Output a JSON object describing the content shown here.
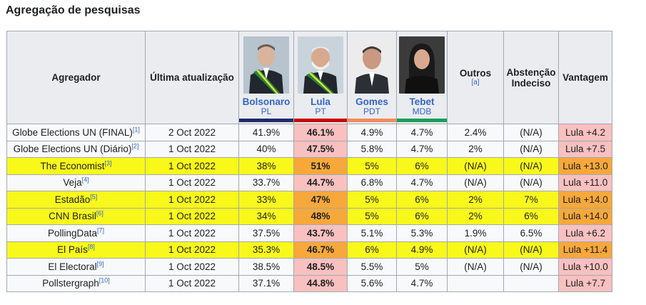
{
  "heading": "Agregação de pesquisas",
  "headers": {
    "agregador": "Agregador",
    "ultima": "Última atualização",
    "outros": "Outros",
    "outros_note": "[a]",
    "abstencao": "Abstenção Indeciso",
    "vantagem": "Vantagem"
  },
  "candidates": [
    {
      "name": "Bolsonaro",
      "party": "PL",
      "bar_color": "#1f2a6b"
    },
    {
      "name": "Lula",
      "party": "PT",
      "bar_color": "#cc0000"
    },
    {
      "name": "Gomes",
      "party": "PDT",
      "bar_color": "#f28b5b"
    },
    {
      "name": "Tebet",
      "party": "MDB",
      "bar_color": "#1a9e5a"
    }
  ],
  "rows": [
    {
      "agg": "Globe Elections UN (FINAL)",
      "ref": "[1]",
      "date": "2 Oct 2022",
      "bolsonaro": "41.9%",
      "lula": "46.1%",
      "gomes": "4.9%",
      "tebet": "4.7%",
      "outros": "2.4%",
      "abst": "(N/A)",
      "vant": "Lula +4.2",
      "highlighted": false
    },
    {
      "agg": "Globe Elections UN (Diário)",
      "ref": "[2]",
      "date": "1 Oct 2022",
      "bolsonaro": "40%",
      "lula": "47.5%",
      "gomes": "5.8%",
      "tebet": "4.7%",
      "outros": "2%",
      "abst": "(N/A)",
      "vant": "Lula +7.5",
      "highlighted": false
    },
    {
      "agg": "The Economist",
      "ref": "[3]",
      "date": "1 Oct 2022",
      "bolsonaro": "38%",
      "lula": "51%",
      "gomes": "5%",
      "tebet": "6%",
      "outros": "(N/A)",
      "abst": "(N/A)",
      "vant": "Lula +13.0",
      "highlighted": true
    },
    {
      "agg": "Veja",
      "ref": "[4]",
      "date": "1 Oct 2022",
      "bolsonaro": "33.7%",
      "lula": "44.7%",
      "gomes": "6.8%",
      "tebet": "4.7%",
      "outros": "(N/A)",
      "abst": "(N/A)",
      "vant": "Lula +11.0",
      "highlighted": false
    },
    {
      "agg": "Estadão",
      "ref": "[5]",
      "date": "1 Oct 2022",
      "bolsonaro": "33%",
      "lula": "47%",
      "gomes": "5%",
      "tebet": "6%",
      "outros": "2%",
      "abst": "7%",
      "vant": "Lula +14.0",
      "highlighted": true
    },
    {
      "agg": "CNN Brasil",
      "ref": "[6]",
      "date": "1 Oct 2022",
      "bolsonaro": "34%",
      "lula": "48%",
      "gomes": "5%",
      "tebet": "6%",
      "outros": "2%",
      "abst": "6%",
      "vant": "Lula +14.0",
      "highlighted": true
    },
    {
      "agg": "PollingData",
      "ref": "[7]",
      "date": "1 Oct 2022",
      "bolsonaro": "37.5%",
      "lula": "43.7%",
      "gomes": "5.1%",
      "tebet": "5.3%",
      "outros": "1.9%",
      "abst": "6.5%",
      "vant": "Lula +6.2",
      "highlighted": false
    },
    {
      "agg": "El País",
      "ref": "[8]",
      "date": "1 Oct 2022",
      "bolsonaro": "35.3%",
      "lula": "46.7%",
      "gomes": "6%",
      "tebet": "4.9%",
      "outros": "(N/A)",
      "abst": "(N/A)",
      "vant": "Lula +11.4",
      "highlighted": true
    },
    {
      "agg": "El Electoral",
      "ref": "[9]",
      "date": "1 Oct 2022",
      "bolsonaro": "38.5%",
      "lula": "48.5%",
      "gomes": "5.5%",
      "tebet": "5%",
      "outros": "(N/A)",
      "abst": "(N/A)",
      "vant": "Lula +10.0",
      "highlighted": false
    },
    {
      "agg": "Pollstergraph",
      "ref": "[10]",
      "date": "1 Oct 2022",
      "bolsonaro": "37.1%",
      "lula": "44.8%",
      "gomes": "5.6%",
      "tebet": "4.7%",
      "outros": "",
      "abst": "",
      "vant": "Lula +7.7",
      "highlighted": false
    }
  ]
}
